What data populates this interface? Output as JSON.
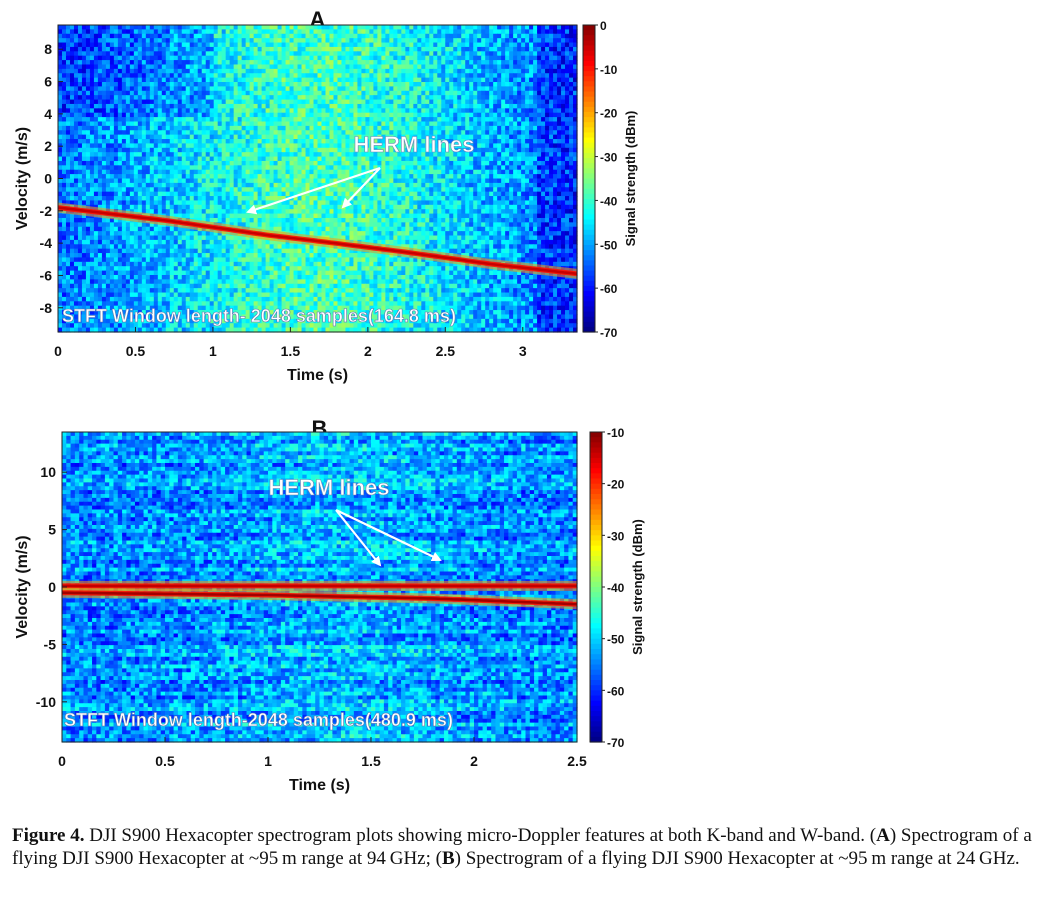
{
  "chart_data": [
    {
      "type": "heatmap",
      "panel_label": "A",
      "xlabel": "Time (s)",
      "ylabel": "Velocity (m/s)",
      "xlim": [
        0,
        3.35
      ],
      "ylim": [
        -9.5,
        9.5
      ],
      "xticks": [
        0,
        0.5,
        1,
        1.5,
        2,
        2.5,
        3
      ],
      "xtick_labels": [
        "0",
        "0.5",
        "1",
        "1.5",
        "2",
        "2.5",
        "3"
      ],
      "yticks": [
        8,
        6,
        4,
        2,
        0,
        -2,
        -4,
        -6,
        -8
      ],
      "ytick_labels": [
        "8",
        "6",
        "4",
        "2",
        "0",
        "-2",
        "-4",
        "-6",
        "-8"
      ],
      "colorbar": {
        "label": "Signal strength (dBm)",
        "range": [
          -70,
          0
        ],
        "ticks": [
          0,
          -10,
          -20,
          -30,
          -40,
          -50,
          -60,
          -70
        ],
        "tick_labels": [
          "0",
          "-10",
          "-20",
          "-30",
          "-40",
          "-50",
          "-60",
          "-70"
        ]
      },
      "features": [
        {
          "name": "body_doppler_line",
          "points": [
            [
              0,
              -1.8
            ],
            [
              0.7,
              -2.6
            ],
            [
              1.35,
              -3.5
            ],
            [
              1.7,
              -3.9
            ],
            [
              2.2,
              -4.5
            ],
            [
              2.8,
              -5.3
            ],
            [
              3.35,
              -5.9
            ]
          ],
          "level_dbm": -5
        }
      ],
      "annotation": "HERM lines",
      "window_text": "STFT Window length- 2048 samples(164.8 ms)"
    },
    {
      "type": "heatmap",
      "panel_label": "B",
      "xlabel": "Time (s)",
      "ylabel": "Velocity (m/s)",
      "xlim": [
        0,
        2.5
      ],
      "ylim": [
        -13.5,
        13.5
      ],
      "xticks": [
        0,
        0.5,
        1,
        1.5,
        2,
        2.5
      ],
      "xtick_labels": [
        "0",
        "0.5",
        "1",
        "1.5",
        "2",
        "2.5"
      ],
      "yticks": [
        10,
        5,
        0,
        -5,
        -10
      ],
      "ytick_labels": [
        "10",
        "5",
        "0",
        "-5",
        "-10"
      ],
      "colorbar": {
        "label": "Signal strength (dBm)",
        "range": [
          -70,
          -10
        ],
        "ticks": [
          -10,
          -20,
          -30,
          -40,
          -50,
          -60,
          -70
        ],
        "tick_labels": [
          "-10",
          "-20",
          "-30",
          "-40",
          "-50",
          "-60",
          "-70"
        ]
      },
      "features": [
        {
          "name": "zero_velocity_line",
          "points": [
            [
              0,
              0.1
            ],
            [
              2.5,
              0.1
            ]
          ],
          "level_dbm": -14
        },
        {
          "name": "body_doppler_line",
          "points": [
            [
              0,
              -0.5
            ],
            [
              1.0,
              -0.7
            ],
            [
              1.8,
              -1.0
            ],
            [
              2.5,
              -1.5
            ]
          ],
          "level_dbm": -12
        }
      ],
      "annotation": "HERM lines",
      "window_text": "STFT Window length-2048 samples(480.9 ms)"
    }
  ],
  "caption": {
    "label": "Figure 4.",
    "text_1": " DJI S900 Hexacopter spectrogram plots showing micro-Doppler features at both K-band and W-band. (",
    "ref_a": "A",
    "text_2": ") Spectrogram of a flying DJI S900 Hexacopter at ~95 m range at 94 GHz; (",
    "ref_b": "B",
    "text_3": ") Spectrogram of a flying DJI S900 Hexacopter at ~95 m range at 24 GHz."
  }
}
